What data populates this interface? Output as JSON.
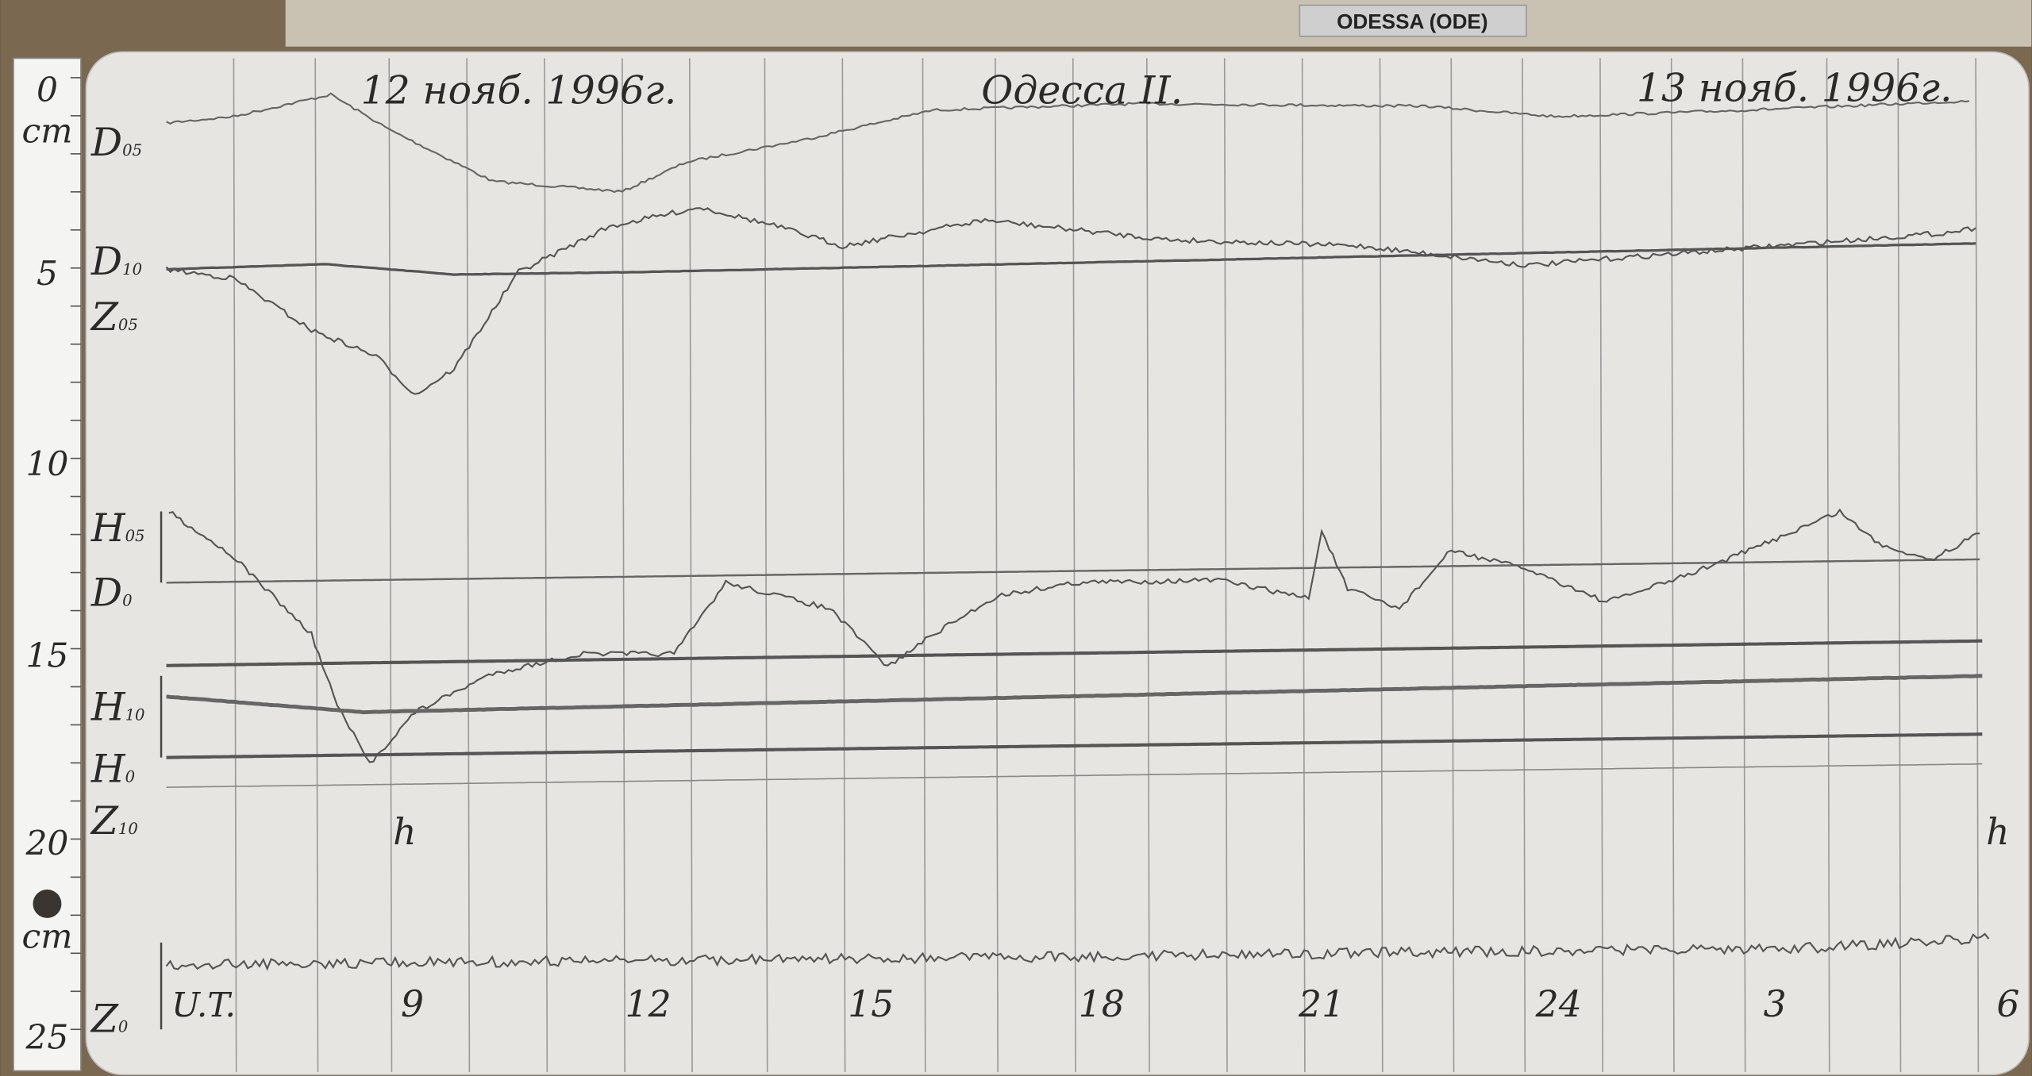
{
  "header": {
    "station_tag": "ODESSA (ODE)"
  },
  "record": {
    "date_left": "12 нояб. 1996г.",
    "station": "Одесса II.",
    "date_right": "13 нояб. 1996г."
  },
  "ruler": {
    "labels": [
      "0",
      "cm",
      "5",
      "10",
      "15",
      "20",
      "cm",
      "25"
    ]
  },
  "traces": [
    {
      "name": "D",
      "sub": "05"
    },
    {
      "name": "D",
      "sub": "10"
    },
    {
      "name": "Z",
      "sub": "05"
    },
    {
      "name": "H",
      "sub": "05"
    },
    {
      "name": "D",
      "sub": "0"
    },
    {
      "name": "H",
      "sub": "10"
    },
    {
      "name": "H",
      "sub": "0"
    },
    {
      "name": "Z",
      "sub": "10"
    },
    {
      "name": "Z",
      "sub": "0"
    }
  ],
  "time_axis": {
    "start": "U.T.",
    "hours": [
      "9",
      "12",
      "15",
      "18",
      "21",
      "24",
      "3",
      "6"
    ],
    "unit_marks": [
      "h",
      "h"
    ]
  }
}
